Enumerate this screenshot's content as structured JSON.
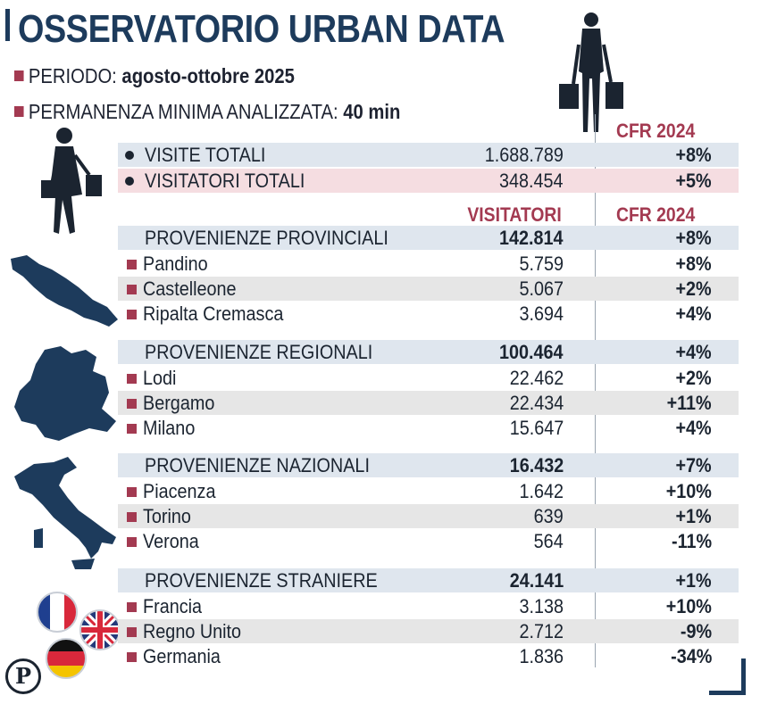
{
  "title": "OSSERVATORIO URBAN DATA",
  "period": {
    "label": "PERIODO:",
    "value": "agosto-ottobre 2025"
  },
  "stay": {
    "label": "PERMANENZA MINIMA ANALIZZATA:",
    "value": "40 min"
  },
  "col_cfr": "CFR 2024",
  "col_visitors": "VISITATORI",
  "totals": [
    {
      "label": "VISITE TOTALI",
      "value": "1.688.789",
      "change": "+8%"
    },
    {
      "label": "VISITATORI TOTALI",
      "value": "348.454",
      "change": "+5%"
    }
  ],
  "sections": [
    {
      "label": "PROVENIENZE PROVINCIALI",
      "value": "142.814",
      "change": "+8%",
      "rows": [
        {
          "label": "Pandino",
          "value": "5.759",
          "change": "+8%"
        },
        {
          "label": "Castelleone",
          "value": "5.067",
          "change": "+2%"
        },
        {
          "label": "Ripalta Cremasca",
          "value": "3.694",
          "change": "+4%"
        }
      ]
    },
    {
      "label": "PROVENIENZE REGIONALI",
      "value": "100.464",
      "change": "+4%",
      "rows": [
        {
          "label": "Lodi",
          "value": "22.462",
          "change": "+2%"
        },
        {
          "label": "Bergamo",
          "value": "22.434",
          "change": "+11%"
        },
        {
          "label": "Milano",
          "value": "15.647",
          "change": "+4%"
        }
      ]
    },
    {
      "label": "PROVENIENZE NAZIONALI",
      "value": "16.432",
      "change": "+7%",
      "rows": [
        {
          "label": "Piacenza",
          "value": "1.642",
          "change": "+10%"
        },
        {
          "label": "Torino",
          "value": "639",
          "change": "+1%"
        },
        {
          "label": "Verona",
          "value": "564",
          "change": "-11%"
        }
      ]
    },
    {
      "label": "PROVENIENZE STRANIERE",
      "value": "24.141",
      "change": "+1%",
      "rows": [
        {
          "label": "Francia",
          "value": "3.138",
          "change": "+10%"
        },
        {
          "label": "Regno Unito",
          "value": "2.712",
          "change": "-9%"
        },
        {
          "label": "Germania",
          "value": "1.836",
          "change": "-34%"
        }
      ]
    }
  ],
  "icons": [
    "shopper-silhouette-icon",
    "woman-shopping-icon",
    "cremona-province-map-icon",
    "lombardy-map-icon",
    "italy-map-icon",
    "france-flag-icon",
    "uk-flag-icon",
    "germany-flag-icon",
    "publisher-logo-icon"
  ],
  "colors": {
    "navy": "#1d3b5c",
    "accent": "#a33a51",
    "band_blue": "#dfe6ee",
    "band_pink": "#f5dde1",
    "band_gray": "#e6e6e6"
  }
}
